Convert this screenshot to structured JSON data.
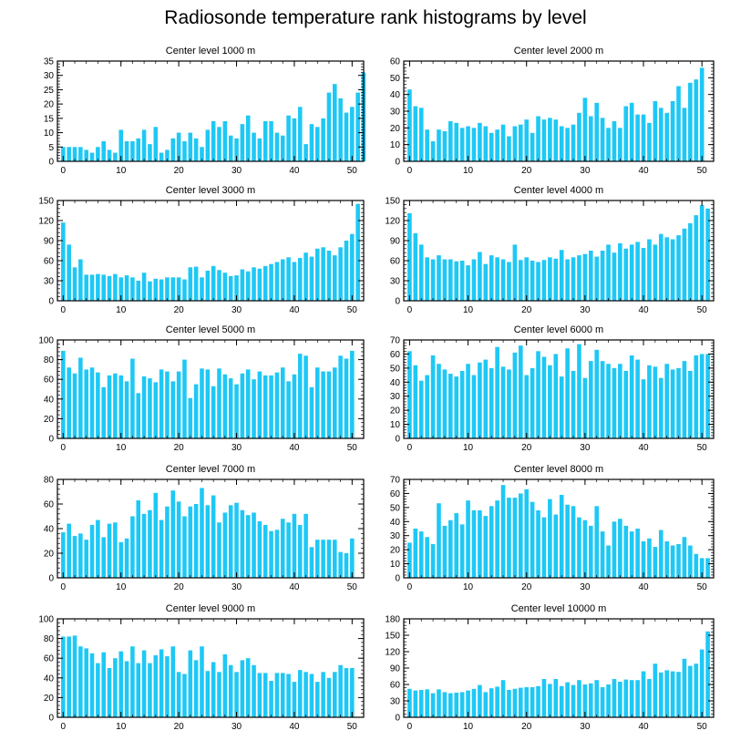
{
  "page": {
    "title": "Radiosonde temperature rank histograms by level"
  },
  "colors": {
    "bar": "#1ec8f5",
    "axis": "#000000"
  },
  "chart_data": [
    {
      "type": "bar",
      "title": "Center level 1000 m",
      "xlim": [
        -1,
        52
      ],
      "ylim": [
        0,
        35
      ],
      "xticks": [
        0,
        10,
        20,
        30,
        40,
        50
      ],
      "yticks": [
        0,
        5,
        10,
        15,
        20,
        25,
        30,
        35
      ],
      "values": [
        5,
        5,
        5,
        5,
        4,
        3,
        5,
        7,
        4,
        3,
        11,
        7,
        7,
        8,
        11,
        6,
        12,
        3,
        4,
        8,
        10,
        7,
        10,
        8,
        5,
        11,
        14,
        12,
        14,
        9,
        8,
        13,
        16,
        10,
        8,
        14,
        14,
        10,
        9,
        16,
        15,
        19,
        6,
        13,
        12,
        15,
        24,
        27,
        22,
        17,
        19,
        24,
        31
      ]
    },
    {
      "type": "bar",
      "title": "Center level 2000 m",
      "xlim": [
        -1,
        52
      ],
      "ylim": [
        0,
        60
      ],
      "xticks": [
        0,
        10,
        20,
        30,
        40,
        50
      ],
      "yticks": [
        0,
        10,
        20,
        30,
        40,
        50,
        60
      ],
      "values": [
        43,
        33,
        32,
        19,
        12,
        19,
        18,
        24,
        23,
        20,
        21,
        20,
        23,
        21,
        17,
        19,
        22,
        15,
        21,
        22,
        25,
        17,
        27,
        25,
        26,
        25,
        21,
        20,
        22,
        29,
        38,
        27,
        35,
        26,
        20,
        24,
        20,
        33,
        35,
        28,
        28,
        23,
        36,
        32,
        29,
        36,
        45,
        32,
        47,
        49,
        56
      ]
    },
    {
      "type": "bar",
      "title": "Center level 3000 m",
      "xlim": [
        -1,
        52
      ],
      "ylim": [
        0,
        150
      ],
      "xticks": [
        0,
        10,
        20,
        30,
        40,
        50
      ],
      "yticks": [
        0,
        30,
        60,
        90,
        120,
        150
      ],
      "values": [
        117,
        84,
        50,
        62,
        39,
        39,
        40,
        39,
        37,
        40,
        35,
        38,
        35,
        30,
        42,
        29,
        33,
        32,
        35,
        35,
        35,
        32,
        50,
        51,
        35,
        45,
        52,
        46,
        42,
        37,
        38,
        47,
        44,
        50,
        48,
        52,
        55,
        58,
        62,
        65,
        58,
        64,
        72,
        66,
        78,
        80,
        75,
        68,
        80,
        90,
        100,
        145
      ]
    },
    {
      "type": "bar",
      "title": "Center level 4000 m",
      "xlim": [
        -1,
        52
      ],
      "ylim": [
        0,
        150
      ],
      "xticks": [
        0,
        10,
        20,
        30,
        40,
        50
      ],
      "yticks": [
        0,
        30,
        60,
        90,
        120,
        150
      ],
      "values": [
        131,
        101,
        84,
        65,
        62,
        68,
        62,
        62,
        59,
        60,
        53,
        62,
        73,
        55,
        68,
        65,
        62,
        58,
        84,
        61,
        65,
        60,
        58,
        61,
        65,
        63,
        76,
        62,
        65,
        68,
        70,
        75,
        66,
        75,
        84,
        72,
        86,
        78,
        84,
        88,
        79,
        92,
        84,
        100,
        95,
        92,
        98,
        108,
        116,
        128,
        143,
        138
      ]
    },
    {
      "type": "bar",
      "title": "Center level 5000 m",
      "xlim": [
        -1,
        52
      ],
      "ylim": [
        0,
        100
      ],
      "xticks": [
        0,
        10,
        20,
        30,
        40,
        50
      ],
      "yticks": [
        0,
        20,
        40,
        60,
        80,
        100
      ],
      "values": [
        89,
        72,
        66,
        82,
        70,
        72,
        67,
        52,
        64,
        66,
        64,
        58,
        81,
        46,
        63,
        61,
        57,
        70,
        68,
        58,
        68,
        80,
        41,
        55,
        71,
        70,
        53,
        71,
        65,
        61,
        55,
        66,
        70,
        60,
        68,
        64,
        64,
        67,
        72,
        58,
        65,
        86,
        84,
        52,
        72,
        68,
        68,
        72,
        84,
        81,
        89
      ]
    },
    {
      "type": "bar",
      "title": "Center level 6000 m",
      "xlim": [
        -1,
        52
      ],
      "ylim": [
        0,
        70
      ],
      "xticks": [
        0,
        10,
        20,
        30,
        40,
        50
      ],
      "yticks": [
        0,
        10,
        20,
        30,
        40,
        50,
        60,
        70
      ],
      "values": [
        62,
        52,
        41,
        45,
        59,
        53,
        49,
        46,
        44,
        48,
        53,
        45,
        54,
        56,
        50,
        65,
        51,
        49,
        61,
        66,
        45,
        50,
        62,
        58,
        52,
        60,
        44,
        64,
        48,
        67,
        43,
        55,
        63,
        55,
        53,
        50,
        53,
        48,
        59,
        56,
        42,
        52,
        51,
        43,
        53,
        49,
        50,
        55,
        48,
        59,
        60,
        60
      ]
    },
    {
      "type": "bar",
      "title": "Center level 7000 m",
      "xlim": [
        -1,
        52
      ],
      "ylim": [
        0,
        80
      ],
      "xticks": [
        0,
        10,
        20,
        30,
        40,
        50
      ],
      "yticks": [
        0,
        20,
        40,
        60,
        80
      ],
      "values": [
        37,
        44,
        34,
        36,
        31,
        43,
        47,
        33,
        44,
        45,
        29,
        32,
        50,
        63,
        52,
        55,
        69,
        47,
        58,
        71,
        62,
        50,
        58,
        60,
        73,
        59,
        67,
        45,
        53,
        59,
        61,
        55,
        51,
        53,
        46,
        43,
        38,
        39,
        48,
        45,
        52,
        43,
        52,
        25,
        31,
        31,
        31,
        31,
        21,
        20,
        32
      ]
    },
    {
      "type": "bar",
      "title": "Center level 8000 m",
      "xlim": [
        -1,
        52
      ],
      "ylim": [
        0,
        70
      ],
      "xticks": [
        0,
        10,
        20,
        30,
        40,
        50
      ],
      "yticks": [
        0,
        10,
        20,
        30,
        40,
        50,
        60,
        70
      ],
      "values": [
        25,
        35,
        33,
        29,
        24,
        53,
        37,
        41,
        46,
        38,
        55,
        48,
        48,
        44,
        51,
        55,
        66,
        57,
        57,
        60,
        63,
        54,
        48,
        43,
        56,
        45,
        59,
        52,
        51,
        43,
        41,
        37,
        51,
        33,
        23,
        40,
        42,
        37,
        33,
        35,
        26,
        28,
        22,
        34,
        26,
        23,
        24,
        29,
        23,
        17,
        14,
        14
      ]
    },
    {
      "type": "bar",
      "title": "Center level 9000 m",
      "xlim": [
        -1,
        52
      ],
      "ylim": [
        0,
        100
      ],
      "xticks": [
        0,
        10,
        20,
        30,
        40,
        50
      ],
      "yticks": [
        0,
        20,
        40,
        60,
        80,
        100
      ],
      "values": [
        82,
        82,
        83,
        72,
        70,
        65,
        55,
        66,
        50,
        60,
        67,
        57,
        72,
        55,
        68,
        55,
        63,
        69,
        62,
        72,
        46,
        44,
        68,
        58,
        72,
        47,
        56,
        46,
        64,
        53,
        46,
        58,
        60,
        53,
        45,
        45,
        37,
        45,
        45,
        44,
        36,
        48,
        46,
        44,
        36,
        46,
        40,
        46,
        53,
        50,
        50
      ]
    },
    {
      "type": "bar",
      "title": "Center level 10000 m",
      "xlim": [
        -1,
        52
      ],
      "ylim": [
        0,
        180
      ],
      "xticks": [
        0,
        10,
        20,
        30,
        40,
        50
      ],
      "yticks": [
        0,
        30,
        60,
        90,
        120,
        150,
        180
      ],
      "values": [
        52,
        49,
        50,
        51,
        44,
        51,
        46,
        44,
        45,
        46,
        49,
        52,
        59,
        46,
        53,
        56,
        68,
        50,
        52,
        54,
        55,
        55,
        57,
        70,
        61,
        70,
        57,
        64,
        59,
        68,
        60,
        62,
        68,
        55,
        60,
        70,
        65,
        69,
        68,
        68,
        84,
        70,
        98,
        82,
        86,
        84,
        83,
        107,
        94,
        98,
        124,
        157
      ]
    }
  ]
}
